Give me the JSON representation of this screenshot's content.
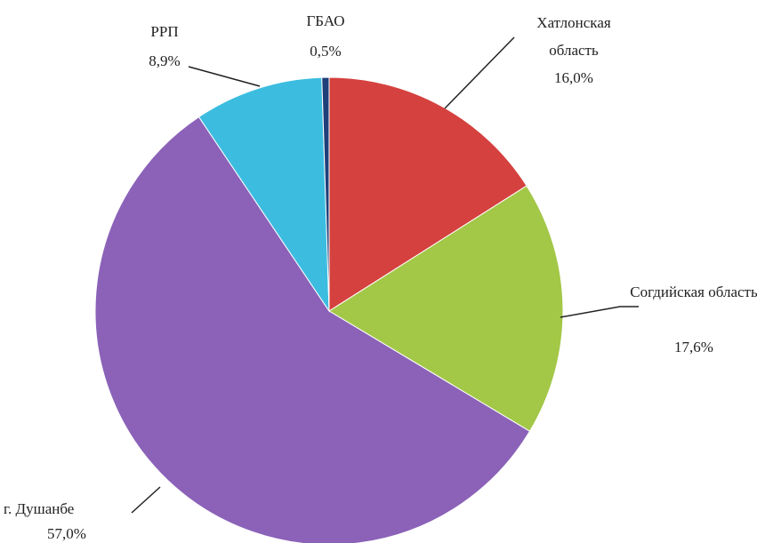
{
  "chart_data": {
    "type": "pie",
    "categories": [
      "Хатлонская область",
      "Согдийская область",
      "г. Душанбе",
      "РРП",
      "ГБАО"
    ],
    "values": [
      16.0,
      17.6,
      57.0,
      8.9,
      0.5
    ],
    "value_labels": [
      "16,0%",
      "17,6%",
      "57,0%",
      "8,9%",
      "0,5%"
    ],
    "colors": [
      "#d4413e",
      "#a3c747",
      "#8b62b8",
      "#3cbde0",
      "#1f3f7a"
    ]
  }
}
